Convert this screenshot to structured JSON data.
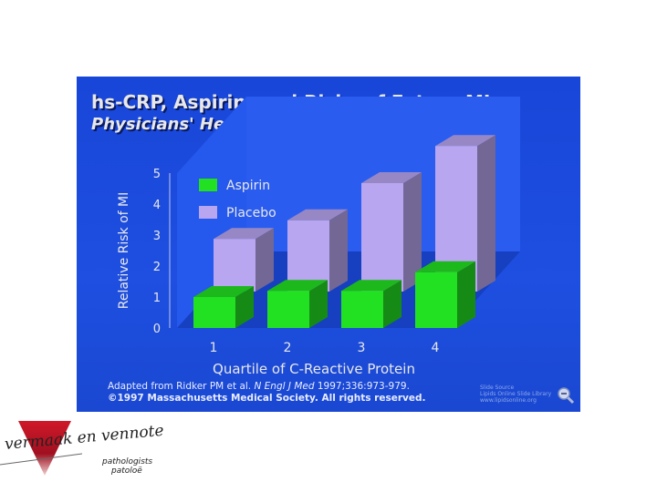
{
  "slide": {
    "title": "hs-CRP, Aspirin, and Risks of Future MI:",
    "subtitle": "Physicians' Health Study",
    "footnote_prefix": "Adapted from Ridker PM et al. ",
    "footnote_journal": "N Engl J Med",
    "footnote_suffix": " 1997;336:973-979.",
    "footnote_rights": "©1997 Massachusetts Medical Society. All rights reserved.",
    "source_line1": "Slide Source",
    "source_line2": "Lipids Online Slide Library",
    "source_line3": "www.lipidsonline.org",
    "zoom_icon": "magnifier-icon"
  },
  "logo": {
    "name": "vermaak en vennote",
    "sub1": "pathologists",
    "sub2": "patoloë",
    "colors": {
      "triangle": "#c01020",
      "text": "#222222"
    }
  },
  "colors": {
    "background": "#1e4fe0",
    "aspirin": "#22e022",
    "placebo": "#b8a6f0",
    "text": "#e8e8e8"
  },
  "chart_data": {
    "type": "bar",
    "categories": [
      "1",
      "2",
      "3",
      "4"
    ],
    "series": [
      {
        "name": "Aspirin",
        "values": [
          1.0,
          1.2,
          1.2,
          1.8
        ]
      },
      {
        "name": "Placebo",
        "values": [
          1.7,
          2.3,
          3.5,
          4.7
        ]
      }
    ],
    "title": "hs-CRP, Aspirin, and Risks of Future MI:",
    "subtitle": "Physicians' Health Study",
    "xlabel": "Quartile of C-Reactive Protein",
    "ylabel": "Relative Risk of MI",
    "ylim": [
      0,
      5
    ],
    "yticks": [
      "0",
      "1",
      "2",
      "3",
      "4",
      "5"
    ],
    "legend_position": "top-left",
    "grid": false
  }
}
